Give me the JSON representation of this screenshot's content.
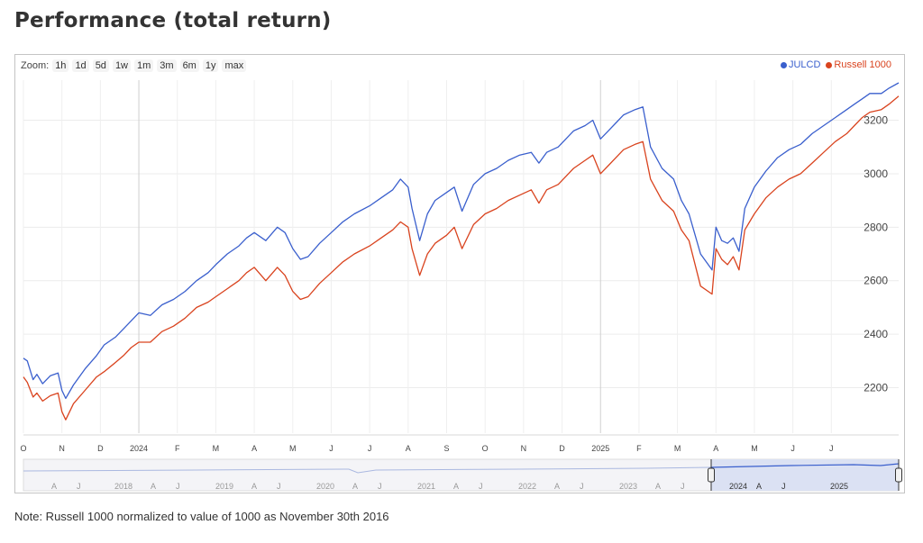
{
  "page": {
    "title": "Performance (total return)",
    "footnote": "Note: Russell 1000 normalized to value of 1000 as November 30th 2016"
  },
  "toolbar": {
    "zoom_label": "Zoom:",
    "zoom_options": [
      "1h",
      "1d",
      "5d",
      "1w",
      "1m",
      "3m",
      "6m",
      "1y",
      "max"
    ]
  },
  "legend": [
    {
      "name": "JULCD",
      "color": "#3a5fcd"
    },
    {
      "name": "Russell 1000",
      "color": "#d9431e"
    }
  ],
  "chart_data": {
    "type": "line",
    "x_unit": "months since Oct 2023",
    "x_ticks": [
      "O",
      "N",
      "D",
      "2024",
      "F",
      "M",
      "A",
      "M",
      "J",
      "J",
      "A",
      "S",
      "O",
      "N",
      "D",
      "2025",
      "F",
      "M",
      "A",
      "M",
      "J",
      "J"
    ],
    "xlim": [
      0.0,
      22.75
    ],
    "ylim": [
      2030,
      3350
    ],
    "y_ticks": [
      2200,
      2400,
      2600,
      2800,
      3000,
      3200
    ],
    "grid": true,
    "legend_position": "top-right",
    "series": [
      {
        "name": "JULCD",
        "color": "#3a5fcd",
        "x": [
          0.0,
          0.1,
          0.25,
          0.35,
          0.5,
          0.7,
          0.9,
          1.0,
          1.1,
          1.3,
          1.6,
          1.9,
          2.1,
          2.4,
          2.6,
          2.8,
          3.0,
          3.3,
          3.6,
          3.9,
          4.2,
          4.5,
          4.8,
          5.0,
          5.3,
          5.6,
          5.8,
          6.0,
          6.3,
          6.6,
          6.8,
          7.0,
          7.2,
          7.4,
          7.7,
          8.0,
          8.3,
          8.6,
          9.0,
          9.3,
          9.6,
          9.8,
          10.0,
          10.1,
          10.3,
          10.5,
          10.7,
          11.0,
          11.2,
          11.4,
          11.7,
          12.0,
          12.3,
          12.6,
          12.9,
          13.2,
          13.4,
          13.6,
          13.9,
          14.1,
          14.3,
          14.6,
          14.8,
          15.0,
          15.2,
          15.4,
          15.6,
          15.9,
          16.1,
          16.3,
          16.6,
          16.9,
          17.1,
          17.3,
          17.6,
          17.9,
          18.0,
          18.15,
          18.3,
          18.45,
          18.6,
          18.75,
          19.0,
          19.3,
          19.6,
          19.9,
          20.2,
          20.5,
          20.8,
          21.1,
          21.4,
          21.6,
          21.8,
          22.0,
          22.3,
          22.5,
          22.75
        ],
        "values": [
          2310,
          2300,
          2230,
          2250,
          2215,
          2245,
          2255,
          2190,
          2160,
          2210,
          2270,
          2320,
          2360,
          2390,
          2420,
          2450,
          2480,
          2470,
          2510,
          2530,
          2560,
          2600,
          2630,
          2660,
          2700,
          2730,
          2760,
          2780,
          2750,
          2800,
          2780,
          2720,
          2680,
          2690,
          2740,
          2780,
          2820,
          2850,
          2880,
          2910,
          2940,
          2980,
          2950,
          2870,
          2750,
          2850,
          2900,
          2930,
          2950,
          2860,
          2960,
          3000,
          3020,
          3050,
          3070,
          3080,
          3040,
          3080,
          3100,
          3130,
          3160,
          3180,
          3200,
          3130,
          3160,
          3190,
          3220,
          3240,
          3250,
          3100,
          3020,
          2980,
          2900,
          2850,
          2700,
          2640,
          2800,
          2750,
          2740,
          2760,
          2710,
          2870,
          2950,
          3010,
          3060,
          3090,
          3110,
          3150,
          3180,
          3210,
          3240,
          3260,
          3280,
          3300,
          3300,
          3320,
          3340
        ]
      },
      {
        "name": "Russell 1000",
        "color": "#d9431e",
        "x": [
          0.0,
          0.1,
          0.25,
          0.35,
          0.5,
          0.7,
          0.9,
          1.0,
          1.1,
          1.3,
          1.6,
          1.9,
          2.1,
          2.4,
          2.6,
          2.8,
          3.0,
          3.3,
          3.6,
          3.9,
          4.2,
          4.5,
          4.8,
          5.0,
          5.3,
          5.6,
          5.8,
          6.0,
          6.3,
          6.6,
          6.8,
          7.0,
          7.2,
          7.4,
          7.7,
          8.0,
          8.3,
          8.6,
          9.0,
          9.3,
          9.6,
          9.8,
          10.0,
          10.1,
          10.3,
          10.5,
          10.7,
          11.0,
          11.2,
          11.4,
          11.7,
          12.0,
          12.3,
          12.6,
          12.9,
          13.2,
          13.4,
          13.6,
          13.9,
          14.1,
          14.3,
          14.6,
          14.8,
          15.0,
          15.2,
          15.4,
          15.6,
          15.9,
          16.1,
          16.3,
          16.6,
          16.9,
          17.1,
          17.3,
          17.6,
          17.9,
          18.0,
          18.15,
          18.3,
          18.45,
          18.6,
          18.75,
          19.0,
          19.3,
          19.6,
          19.9,
          20.2,
          20.5,
          20.8,
          21.1,
          21.4,
          21.6,
          21.8,
          22.0,
          22.3,
          22.5,
          22.75
        ],
        "values": [
          2240,
          2220,
          2165,
          2180,
          2150,
          2170,
          2180,
          2110,
          2080,
          2140,
          2190,
          2240,
          2260,
          2295,
          2320,
          2350,
          2370,
          2370,
          2410,
          2430,
          2460,
          2500,
          2520,
          2540,
          2570,
          2600,
          2630,
          2650,
          2600,
          2650,
          2620,
          2560,
          2530,
          2540,
          2590,
          2630,
          2670,
          2700,
          2730,
          2760,
          2790,
          2820,
          2800,
          2720,
          2620,
          2700,
          2740,
          2770,
          2800,
          2720,
          2810,
          2850,
          2870,
          2900,
          2920,
          2940,
          2890,
          2940,
          2960,
          2990,
          3020,
          3050,
          3070,
          3000,
          3030,
          3060,
          3090,
          3110,
          3120,
          2980,
          2900,
          2860,
          2790,
          2750,
          2580,
          2550,
          2720,
          2680,
          2660,
          2690,
          2640,
          2790,
          2850,
          2910,
          2950,
          2980,
          3000,
          3040,
          3080,
          3120,
          3150,
          3180,
          3210,
          3230,
          3240,
          3260,
          3290
        ]
      }
    ]
  },
  "navigator": {
    "year_labels": [
      "2018",
      "2019",
      "2020",
      "2021",
      "2022",
      "2023",
      "2024",
      "2025"
    ],
    "minor_labels": [
      "A",
      "J",
      "A",
      "J",
      "A",
      "J",
      "A",
      "J",
      "A",
      "J",
      "A",
      "J",
      "A",
      "J",
      "A",
      "J"
    ]
  }
}
